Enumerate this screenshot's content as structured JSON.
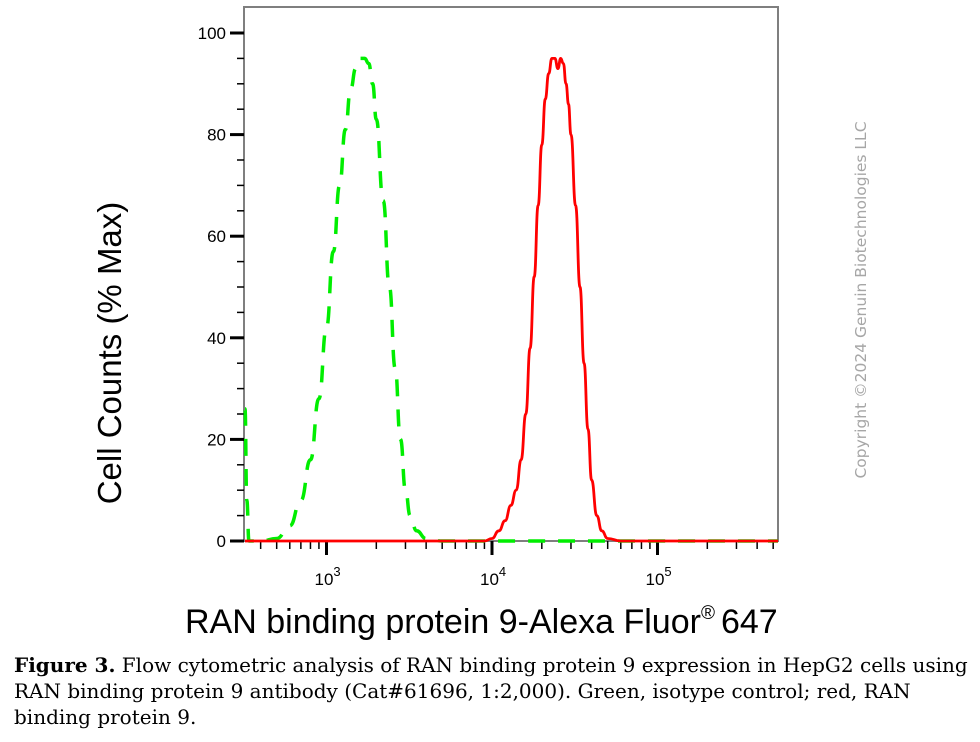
{
  "chart_data": {
    "type": "line",
    "title": "",
    "xlabel": "RAN binding protein 9-Alexa Fluor® 647",
    "xlabel_main": "RAN binding protein 9-Alexa Fluor",
    "xlabel_sup": "®",
    "xlabel_end": "647",
    "ylabel": "Cell Counts (% Max)",
    "xscale": "log",
    "xlim": [
      316,
      537000
    ],
    "ylim": [
      0,
      105
    ],
    "x_tick_labels": [
      {
        "base": "10",
        "exp": "3",
        "value": 1000
      },
      {
        "base": "10",
        "exp": "4",
        "value": 10000
      },
      {
        "base": "10",
        "exp": "5",
        "value": 100000
      }
    ],
    "y_ticks": [
      0,
      20,
      40,
      60,
      80,
      100
    ],
    "y_tick_labels": [
      "0",
      "20",
      "40",
      "60",
      "80",
      "100"
    ],
    "grid": false,
    "legend": "none (described in caption)",
    "series": [
      {
        "name": "Isotope control",
        "color": "#00ee00",
        "style": "dashed",
        "x": [
          316,
          330,
          340,
          400,
          500,
          600,
          700,
          800,
          900,
          1000,
          1100,
          1200,
          1300,
          1400,
          1500,
          1600,
          1700,
          1800,
          1900,
          2000,
          2200,
          2400,
          2600,
          2800,
          3000,
          3200,
          3500,
          4000,
          5000,
          10000,
          100000,
          537000
        ],
        "y": [
          26,
          8,
          0,
          0,
          0.5,
          3,
          8,
          16,
          28,
          42,
          57,
          70,
          81,
          89,
          93,
          95,
          95,
          94,
          90,
          83,
          67,
          50,
          34,
          20,
          10,
          5,
          2,
          0.5,
          0,
          0,
          0,
          0
        ]
      },
      {
        "name": "RAN binding protein 9",
        "color": "#ff0000",
        "style": "solid",
        "x": [
          316,
          5000,
          9000,
          10000,
          11000,
          12000,
          13000,
          14000,
          15000,
          16000,
          17000,
          18000,
          19000,
          20000,
          21000,
          22000,
          23000,
          24000,
          25000,
          26000,
          27000,
          28000,
          29000,
          30000,
          32000,
          34000,
          36000,
          38000,
          40000,
          43000,
          46000,
          50000,
          60000,
          100000,
          537000
        ],
        "y": [
          0,
          0,
          0,
          0.5,
          2,
          4,
          7,
          10,
          16,
          25,
          38,
          52,
          66,
          78,
          87,
          92,
          95,
          95,
          93,
          95,
          94,
          90,
          86,
          80,
          66,
          50,
          35,
          22,
          12,
          5,
          2,
          0.5,
          0,
          0,
          0
        ]
      }
    ]
  },
  "watermark": "Copyright ©2024 Genuin Biotechnologies LLC",
  "caption": {
    "figure_label": "Figure 3.",
    "text": " Flow cytometric analysis of RAN binding protein 9 expression in HepG2 cells using RAN binding protein 9 antibody (Cat#61696, 1:2,000). Green, isotype control; red, RAN binding protein 9."
  },
  "colors": {
    "axis": "#7f7f7f",
    "tick": "#000000",
    "green_series": "#00ee00",
    "red_series": "#ff0000",
    "watermark": "#a6a6a6"
  }
}
